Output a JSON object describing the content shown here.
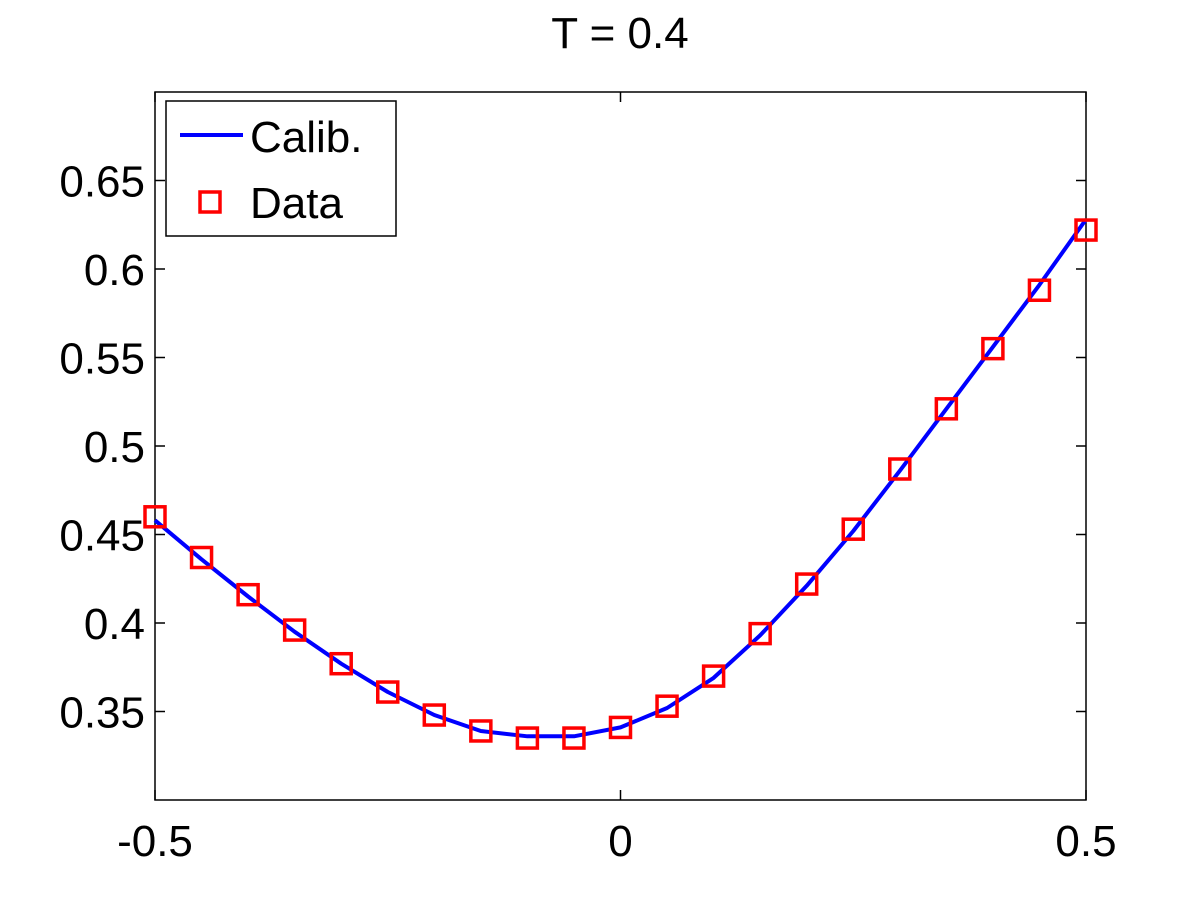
{
  "chart_data": {
    "type": "line",
    "title": "T = 0.4",
    "xlabel": "",
    "ylabel": "",
    "xlim": [
      -0.5,
      0.5
    ],
    "ylim": [
      0.3,
      0.7
    ],
    "xticks": [
      -0.5,
      0,
      0.5
    ],
    "xtick_labels": [
      "-0.5",
      "0",
      "0.5"
    ],
    "yticks": [
      0.35,
      0.4,
      0.45,
      0.5,
      0.55,
      0.6,
      0.65
    ],
    "ytick_labels": [
      "0.35",
      "0.4",
      "0.45",
      "0.5",
      "0.55",
      "0.6",
      "0.65"
    ],
    "grid": false,
    "legend_position": "top-left",
    "legend": [
      "Calib.",
      "Data"
    ],
    "series": [
      {
        "name": "Calib.",
        "style": "line",
        "color": "#0000ff",
        "x": [
          -0.5,
          -0.45,
          -0.4,
          -0.35,
          -0.3,
          -0.25,
          -0.2,
          -0.15,
          -0.1,
          -0.05,
          0,
          0.05,
          0.1,
          0.15,
          0.2,
          0.25,
          0.3,
          0.35,
          0.4,
          0.45,
          0.5
        ],
        "y": [
          0.458,
          0.436,
          0.415,
          0.395,
          0.377,
          0.361,
          0.348,
          0.339,
          0.336,
          0.336,
          0.341,
          0.352,
          0.369,
          0.393,
          0.421,
          0.452,
          0.486,
          0.521,
          0.556,
          0.591,
          0.628
        ]
      },
      {
        "name": "Data",
        "style": "marker-square",
        "color": "#ff0000",
        "x": [
          -0.5,
          -0.45,
          -0.4,
          -0.35,
          -0.3,
          -0.25,
          -0.2,
          -0.15,
          -0.1,
          -0.05,
          0,
          0.05,
          0.1,
          0.15,
          0.2,
          0.25,
          0.3,
          0.35,
          0.4,
          0.45,
          0.5
        ],
        "y": [
          0.46,
          0.437,
          0.416,
          0.396,
          0.377,
          0.361,
          0.348,
          0.339,
          0.335,
          0.335,
          0.341,
          0.353,
          0.37,
          0.394,
          0.422,
          0.453,
          0.487,
          0.521,
          0.555,
          0.588,
          0.622
        ]
      }
    ]
  }
}
